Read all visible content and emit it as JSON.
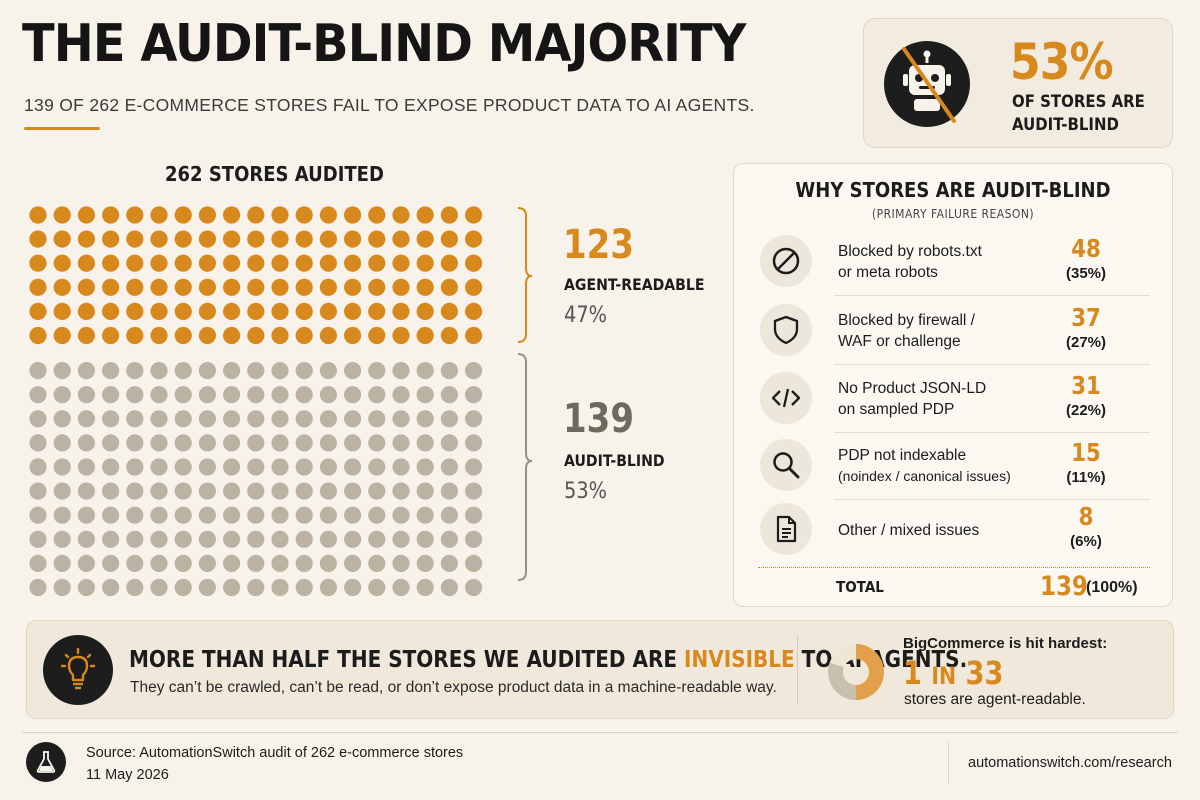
{
  "header": {
    "title": "THE AUDIT-BLIND MAJORITY",
    "subtitle": "139 OF 262 E-COMMERCE STORES FAIL TO EXPOSE PRODUCT DATA TO AI AGENTS."
  },
  "badge": {
    "percent": "53%",
    "caption_line1": "OF STORES ARE",
    "caption_line2": "AUDIT-BLIND",
    "icon": "robot-crossed-out-icon"
  },
  "waffle": {
    "title": "262 STORES AUDITED",
    "total": 262,
    "readable": {
      "count": "123",
      "label": "AGENT-READABLE",
      "percent": "47%",
      "value": 123
    },
    "blind": {
      "count": "139",
      "label": "AUDIT-BLIND",
      "percent": "53%",
      "value": 139
    },
    "colors": {
      "readable": "#d8891e",
      "blind": "#bbb2a4"
    }
  },
  "reasons": {
    "title": "WHY STORES ARE AUDIT-BLIND",
    "subtitle": "(PRIMARY FAILURE REASON)",
    "items": [
      {
        "icon": "blocked-circle-icon",
        "line1": "Blocked by robots.txt",
        "line2": "or meta robots",
        "count": "48",
        "percent": "(35%)"
      },
      {
        "icon": "shield-icon",
        "line1": "Blocked by firewall /",
        "line2": "WAF or challenge",
        "count": "37",
        "percent": "(27%)"
      },
      {
        "icon": "code-icon",
        "line1": "No Product JSON-LD",
        "line2": "on sampled PDP",
        "count": "31",
        "percent": "(22%)"
      },
      {
        "icon": "magnifier-icon",
        "line1": "PDP not indexable",
        "line2": "(noindex / canonical issues)",
        "count": "15",
        "percent": "(11%)"
      },
      {
        "icon": "document-icon",
        "line1": "Other / mixed issues",
        "line2": "",
        "count": "8",
        "percent": "(6%)"
      }
    ],
    "total_label": "TOTAL",
    "total_count": "139",
    "total_percent": "(100%)"
  },
  "banner": {
    "icon": "lightbulb-icon",
    "headline_pre": "MORE THAN HALF THE STORES WE AUDITED ARE ",
    "headline_highlight": "INVISIBLE",
    "headline_post": " TO AI AGENTS.",
    "body": "They can’t be crawled, can’t be read, or don’t expose product data in a machine-readable way.",
    "bigcommerce_intro": "BigCommerce is hit hardest:",
    "ratio_a": "1",
    "ratio_in": "IN",
    "ratio_b": "33",
    "bigcommerce_outro": "stores are agent-readable."
  },
  "footer": {
    "icon": "flask-icon",
    "source": "Source: AutomationSwitch audit of 262 e-commerce stores",
    "date": "11 May 2026",
    "site": "automationswitch.com/research"
  }
}
